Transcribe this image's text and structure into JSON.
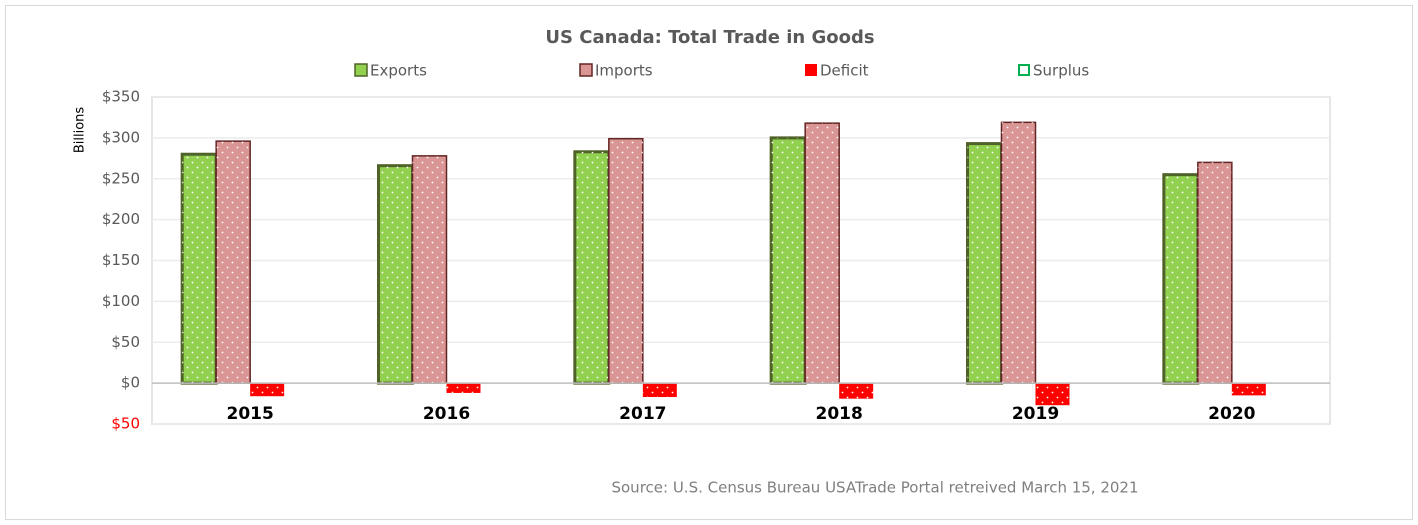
{
  "chart_data": {
    "type": "bar",
    "title": "US Canada: Total Trade in Goods",
    "y_label": "Billions",
    "source": "Source: U.S. Census Bureau USATrade Portal retreived  March 15, 2021",
    "categories": [
      "2015",
      "2016",
      "2017",
      "2018",
      "2019",
      "2020"
    ],
    "series": [
      {
        "name": "Exports",
        "color": "#92d050",
        "values": [
          280,
          266,
          283,
          300,
          293,
          255
        ]
      },
      {
        "name": "Imports",
        "color": "#d99694",
        "values": [
          296,
          278,
          299,
          318,
          319,
          270
        ]
      },
      {
        "name": "Deficit",
        "color": "#ff0000",
        "values": [
          -16,
          -12,
          -17,
          -19,
          -27,
          -15
        ]
      },
      {
        "name": "Surplus",
        "color": "#00b050",
        "values": [
          null,
          null,
          null,
          null,
          null,
          null
        ]
      }
    ],
    "ylim": [
      -50,
      350
    ],
    "yticks": [
      {
        "value": -50,
        "label": "$50"
      },
      {
        "value": 0,
        "label": "$0"
      },
      {
        "value": 50,
        "label": "$50"
      },
      {
        "value": 100,
        "label": "$100"
      },
      {
        "value": 150,
        "label": "$150"
      },
      {
        "value": 200,
        "label": "$200"
      },
      {
        "value": 250,
        "label": "$250"
      },
      {
        "value": 300,
        "label": "$300"
      },
      {
        "value": 350,
        "label": "$350"
      }
    ],
    "grid": true
  }
}
